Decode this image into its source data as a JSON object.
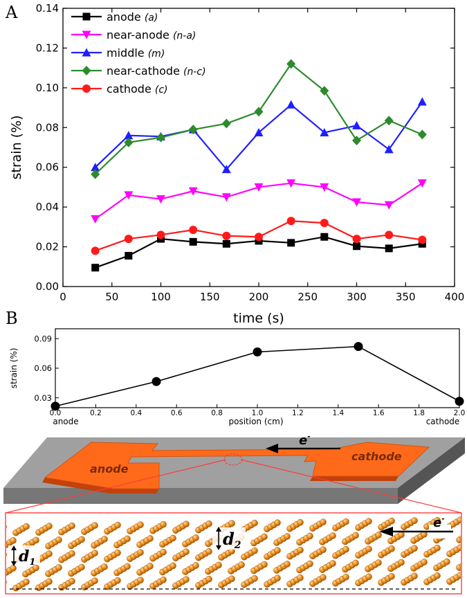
{
  "colors": {
    "anode": "#000000",
    "near_anode": "#ff00ff",
    "middle": "#1f1fff",
    "near_cathode": "#2d8a2d",
    "cathode": "#ff1a1a",
    "stripe": "#ff5a14",
    "substrate": "#8a8a8a",
    "atom": "#e88a1a",
    "zoom": "#ff3b3b"
  },
  "chart_data": [
    {
      "panel_label": "A",
      "type": "line",
      "title": "",
      "xlabel": "time (s)",
      "ylabel": "strain (%)",
      "xlim": [
        0,
        400
      ],
      "ylim": [
        0,
        0.14
      ],
      "xticks": [
        "0",
        "50",
        "100",
        "150",
        "200",
        "250",
        "300",
        "350",
        "400"
      ],
      "yticks": [
        "0.00",
        "0.02",
        "0.04",
        "0.06",
        "0.08",
        "0.10",
        "0.12",
        "0.14"
      ],
      "x": [
        33,
        67,
        100,
        133,
        167,
        200,
        233,
        267,
        300,
        333,
        367
      ],
      "legend_position": "top-left",
      "series": [
        {
          "name": "anode",
          "tag": "(a)",
          "marker": "square",
          "color_key": "anode",
          "values": [
            0.0095,
            0.0155,
            0.024,
            0.0225,
            0.0215,
            0.023,
            0.022,
            0.025,
            0.0203,
            0.0192,
            0.0215
          ]
        },
        {
          "name": "near-anode",
          "tag": "(n-a)",
          "marker": "triangle-down",
          "color_key": "near_anode",
          "values": [
            0.034,
            0.046,
            0.044,
            0.048,
            0.045,
            0.05,
            0.052,
            0.05,
            0.0425,
            0.041,
            0.052
          ]
        },
        {
          "name": "middle",
          "tag": "(m)",
          "marker": "triangle-up",
          "color_key": "middle",
          "values": [
            0.06,
            0.076,
            0.0755,
            0.079,
            0.059,
            0.0775,
            0.0915,
            0.0775,
            0.081,
            0.069,
            0.093
          ]
        },
        {
          "name": "near-cathode",
          "tag": "(n-c)",
          "marker": "diamond",
          "color_key": "near_cathode",
          "values": [
            0.0565,
            0.0725,
            0.075,
            0.079,
            0.082,
            0.088,
            0.112,
            0.0985,
            0.0735,
            0.0835,
            0.0765
          ]
        },
        {
          "name": "cathode",
          "tag": "(c)",
          "marker": "circle",
          "color_key": "cathode",
          "values": [
            0.018,
            0.024,
            0.026,
            0.0285,
            0.0255,
            0.025,
            0.033,
            0.032,
            0.024,
            0.026,
            0.0235
          ]
        }
      ]
    },
    {
      "panel_label": "B",
      "type": "line",
      "title": "",
      "xlabel": "position (cm)",
      "ylabel": "strain (%)",
      "xlim": [
        0,
        2
      ],
      "ylim": [
        0.02,
        0.1
      ],
      "xticks": [
        "0.0",
        "0.2",
        "0.4",
        "0.6",
        "0.8",
        "1.0",
        "1.2",
        "1.4",
        "1.6",
        "1.8",
        "2.0"
      ],
      "yticks": [
        "0.03",
        "0.06",
        "0.09"
      ],
      "x_end_labels": {
        "left": "anode",
        "right": "cathode"
      },
      "series": [
        {
          "name": "strain",
          "color_key": "anode",
          "x": [
            0.0,
            0.5,
            1.0,
            1.5,
            2.0
          ],
          "values": [
            0.0215,
            0.0465,
            0.0765,
            0.082,
            0.0265
          ]
        }
      ]
    }
  ],
  "schematic": {
    "anode_label": "anode",
    "cathode_label": "cathode",
    "electron_label": "e",
    "electron_sup": "-",
    "d1_label": "d",
    "d1_sub": "1",
    "d2_label": "d",
    "d2_sub": "2"
  }
}
